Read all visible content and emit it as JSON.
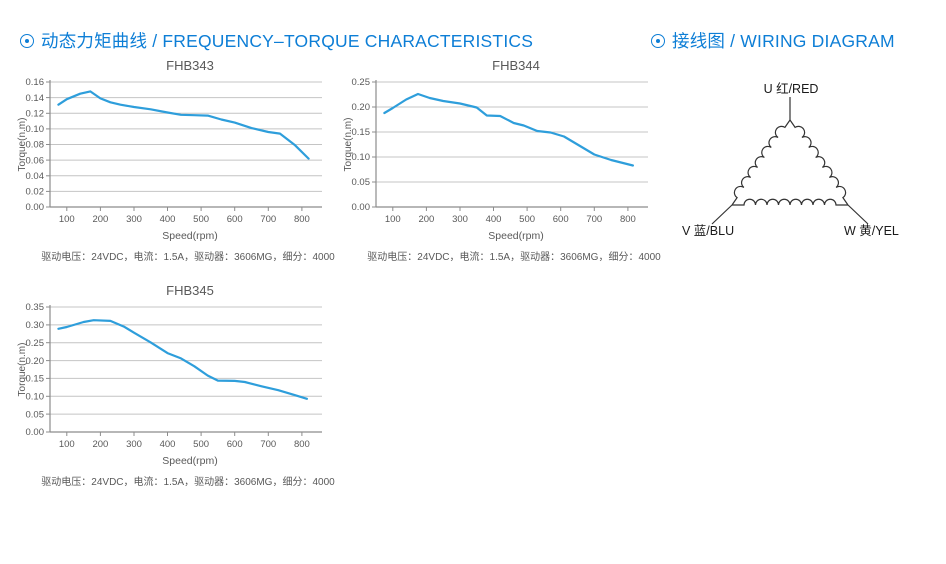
{
  "colors": {
    "accent_blue": "#0d7ed6",
    "line_blue": "#2e9edb",
    "grid": "#c4c4c4",
    "axis": "#8c8c8c",
    "text_gray": "#595959",
    "wire_stroke": "#333333"
  },
  "sections": [
    {
      "title": "动态力矩曲线 / FREQUENCY–TORQUE CHARACTERISTICS"
    },
    {
      "title": "接线图 / WIRING DIAGRAM"
    }
  ],
  "chart_data": [
    {
      "type": "line",
      "title": "FHB343",
      "xlabel": "Speed(rpm)",
      "ylabel": "Torque(n.m)",
      "caption": "驱动电压：24VDC，电流：1.5A，驱动器：3606MG，细分：4000",
      "xlim": [
        50,
        860
      ],
      "ylim": [
        0,
        0.16
      ],
      "ystep": 0.02,
      "xticks": [
        100,
        200,
        300,
        400,
        500,
        600,
        700,
        800
      ],
      "grid": "horizontal",
      "legend": "none",
      "points": [
        [
          75,
          0.131
        ],
        [
          100,
          0.138
        ],
        [
          140,
          0.145
        ],
        [
          170,
          0.148
        ],
        [
          200,
          0.139
        ],
        [
          230,
          0.134
        ],
        [
          260,
          0.131
        ],
        [
          300,
          0.128
        ],
        [
          350,
          0.125
        ],
        [
          400,
          0.121
        ],
        [
          440,
          0.118
        ],
        [
          480,
          0.1175
        ],
        [
          520,
          0.117
        ],
        [
          560,
          0.112
        ],
        [
          600,
          0.108
        ],
        [
          650,
          0.101
        ],
        [
          700,
          0.096
        ],
        [
          735,
          0.094
        ],
        [
          780,
          0.079
        ],
        [
          820,
          0.062
        ]
      ]
    },
    {
      "type": "line",
      "title": "FHB344",
      "xlabel": "Speed(rpm)",
      "ylabel": "Torque(n.m)",
      "caption": "驱动电压：24VDC，电流：1.5A，驱动器：3606MG，细分：4000",
      "xlim": [
        50,
        860
      ],
      "ylim": [
        0,
        0.25
      ],
      "ystep": 0.05,
      "xticks": [
        100,
        200,
        300,
        400,
        500,
        600,
        700,
        800
      ],
      "grid": "horizontal",
      "legend": "none",
      "points": [
        [
          75,
          0.188
        ],
        [
          100,
          0.198
        ],
        [
          140,
          0.215
        ],
        [
          175,
          0.226
        ],
        [
          210,
          0.218
        ],
        [
          250,
          0.212
        ],
        [
          300,
          0.207
        ],
        [
          350,
          0.199
        ],
        [
          380,
          0.183
        ],
        [
          420,
          0.182
        ],
        [
          460,
          0.168
        ],
        [
          490,
          0.163
        ],
        [
          530,
          0.152
        ],
        [
          570,
          0.149
        ],
        [
          610,
          0.141
        ],
        [
          650,
          0.125
        ],
        [
          700,
          0.105
        ],
        [
          750,
          0.094
        ],
        [
          815,
          0.083
        ]
      ]
    },
    {
      "type": "line",
      "title": "FHB345",
      "xlabel": "Speed(rpm)",
      "ylabel": "Torque(n.m)",
      "caption": "驱动电压：24VDC，电流：1.5A，驱动器：3606MG，细分：4000",
      "xlim": [
        50,
        860
      ],
      "ylim": [
        0,
        0.35
      ],
      "ystep": 0.05,
      "xticks": [
        100,
        200,
        300,
        400,
        500,
        600,
        700,
        800
      ],
      "grid": "horizontal",
      "legend": "none",
      "points": [
        [
          75,
          0.289
        ],
        [
          100,
          0.294
        ],
        [
          150,
          0.308
        ],
        [
          180,
          0.313
        ],
        [
          230,
          0.311
        ],
        [
          270,
          0.295
        ],
        [
          300,
          0.278
        ],
        [
          350,
          0.251
        ],
        [
          400,
          0.221
        ],
        [
          440,
          0.206
        ],
        [
          480,
          0.184
        ],
        [
          520,
          0.158
        ],
        [
          550,
          0.144
        ],
        [
          600,
          0.143
        ],
        [
          630,
          0.14
        ],
        [
          680,
          0.128
        ],
        [
          730,
          0.117
        ],
        [
          780,
          0.103
        ],
        [
          815,
          0.093
        ]
      ]
    }
  ],
  "wiring": {
    "labels": {
      "u": "U 红/RED",
      "v": "V 蓝/BLU",
      "w": "W 黄/YEL"
    }
  }
}
